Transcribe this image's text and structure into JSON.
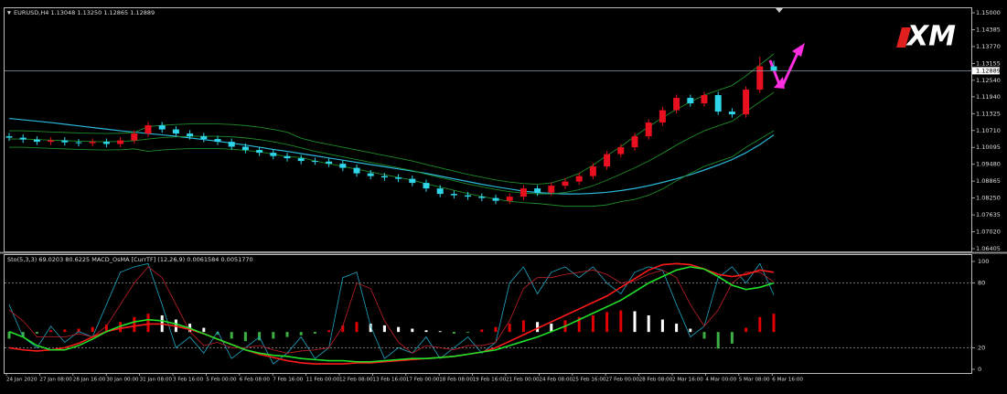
{
  "chart_data": [
    {
      "type": "candlestick",
      "title": "EURUSD,H4 1.13048 1.13250 1.12865 1.12889",
      "logo": "XM",
      "up_color": "#e8101e",
      "down_color": "#2fd6ea",
      "ylim": [
        1.06405,
        1.15
      ],
      "yticks": [
        {
          "value": 1.15,
          "label": "1.15000"
        },
        {
          "value": 1.14385,
          "label": "1.14385"
        },
        {
          "value": 1.1377,
          "label": "1.13770"
        },
        {
          "value": 1.13155,
          "label": "1.13155"
        },
        {
          "value": 1.1254,
          "label": "1.12540"
        },
        {
          "value": 1.1194,
          "label": "1.11940"
        },
        {
          "value": 1.11325,
          "label": "1.11325"
        },
        {
          "value": 1.1071,
          "label": "1.10710"
        },
        {
          "value": 1.10095,
          "label": "1.10095"
        },
        {
          "value": 1.0948,
          "label": "1.09480"
        },
        {
          "value": 1.08865,
          "label": "1.08865"
        },
        {
          "value": 1.0825,
          "label": "1.08250"
        },
        {
          "value": 1.07635,
          "label": "1.07635"
        },
        {
          "value": 1.0702,
          "label": "1.07020"
        },
        {
          "value": 1.06405,
          "label": "1.06405"
        }
      ],
      "price_line": {
        "value": 1.12889,
        "label": "1.12889"
      },
      "open": [
        1.105,
        1.1045,
        1.1038,
        1.103,
        1.1035,
        1.1028,
        1.1025,
        1.103,
        1.1022,
        1.1035,
        1.106,
        1.109,
        1.1075,
        1.106,
        1.105,
        1.104,
        1.103,
        1.1012,
        1.1,
        1.099,
        1.0978,
        1.097,
        1.096,
        1.0958,
        1.095,
        1.0935,
        1.0915,
        1.0905,
        1.09,
        1.0895,
        1.088,
        1.086,
        1.084,
        1.0835,
        1.083,
        1.0825,
        1.0815,
        1.083,
        1.086,
        1.0845,
        1.087,
        1.0885,
        1.0905,
        1.094,
        1.0985,
        1.101,
        1.105,
        1.11,
        1.1145,
        1.119,
        1.117,
        1.12,
        1.114,
        1.113,
        1.122,
        1.1305
      ],
      "high": [
        1.1062,
        1.1057,
        1.105,
        1.1047,
        1.1047,
        1.104,
        1.1042,
        1.1042,
        1.1047,
        1.1072,
        1.1102,
        1.1102,
        1.1087,
        1.1072,
        1.1062,
        1.1052,
        1.1042,
        1.1024,
        1.1012,
        1.1002,
        1.099,
        1.0982,
        1.0972,
        1.097,
        1.0962,
        1.0947,
        1.0927,
        1.0917,
        1.0912,
        1.0907,
        1.0892,
        1.0872,
        1.0852,
        1.0847,
        1.0842,
        1.0837,
        1.0842,
        1.0872,
        1.0872,
        1.0882,
        1.0897,
        1.0917,
        1.0952,
        1.0997,
        1.1022,
        1.1062,
        1.1112,
        1.1157,
        1.1202,
        1.1202,
        1.1212,
        1.1212,
        1.1152,
        1.1232,
        1.134,
        1.1325
      ],
      "low": [
        1.1033,
        1.1026,
        1.1018,
        1.1018,
        1.1016,
        1.1013,
        1.1013,
        1.101,
        1.101,
        1.1023,
        1.1048,
        1.1063,
        1.1048,
        1.1038,
        1.1028,
        1.1018,
        1.1,
        1.0988,
        1.0978,
        1.0966,
        1.0958,
        1.0948,
        1.0946,
        1.0938,
        1.0923,
        1.0903,
        1.0893,
        1.0888,
        1.0883,
        1.0868,
        1.0848,
        1.0828,
        1.0823,
        1.0818,
        1.0813,
        1.0803,
        1.0803,
        1.0818,
        1.0833,
        1.0833,
        1.0858,
        1.0873,
        1.0893,
        1.0928,
        1.0973,
        1.0998,
        1.1038,
        1.1088,
        1.1133,
        1.1158,
        1.1158,
        1.1128,
        1.1118,
        1.1118,
        1.1208,
        1.1287
      ],
      "close": [
        1.1045,
        1.1038,
        1.103,
        1.1035,
        1.1028,
        1.1025,
        1.103,
        1.1022,
        1.1035,
        1.106,
        1.109,
        1.1075,
        1.106,
        1.105,
        1.104,
        1.103,
        1.1012,
        1.1,
        1.099,
        1.0978,
        1.097,
        1.096,
        1.0958,
        1.095,
        1.0935,
        1.0915,
        1.0905,
        1.09,
        1.0895,
        1.088,
        1.086,
        1.084,
        1.0835,
        1.083,
        1.0825,
        1.0815,
        1.083,
        1.086,
        1.0845,
        1.087,
        1.0885,
        1.0905,
        1.094,
        1.0985,
        1.101,
        1.105,
        1.11,
        1.1145,
        1.119,
        1.117,
        1.12,
        1.114,
        1.113,
        1.122,
        1.1305,
        1.1289
      ],
      "series": [
        {
          "color": "#2bb7d8",
          "values": [
            1.1115,
            1.111,
            1.1105,
            1.11,
            1.1094,
            1.1088,
            1.1082,
            1.1076,
            1.107,
            1.1065,
            1.106,
            1.1055,
            1.105,
            1.1044,
            1.1038,
            1.1032,
            1.1025,
            1.1018,
            1.101,
            1.1002,
            1.0995,
            1.0987,
            1.0979,
            1.0971,
            1.0963,
            1.0955,
            1.0947,
            1.0939,
            1.0931,
            1.0923,
            1.0915,
            1.0905,
            1.0895,
            1.0885,
            1.0875,
            1.0866,
            1.0858,
            1.085,
            1.0845,
            1.0842,
            1.084,
            1.084,
            1.0842,
            1.0846,
            1.0852,
            1.086,
            1.087,
            1.0882,
            1.0895,
            1.091,
            1.0927,
            1.0945,
            1.0965,
            1.099,
            1.102,
            1.1055
          ]
        },
        {
          "color": "#1e8a28",
          "values": [
            1.104,
            1.104,
            1.1038,
            1.1036,
            1.1034,
            1.1032,
            1.1031,
            1.103,
            1.1031,
            1.1034,
            1.104,
            1.1045,
            1.1048,
            1.105,
            1.105,
            1.105,
            1.1048,
            1.1044,
            1.1038,
            1.103,
            1.102,
            1.1008,
            1.0995,
            1.0985,
            1.0975,
            1.0965,
            1.0955,
            1.0945,
            1.0935,
            1.0925,
            1.0912,
            1.09,
            1.0888,
            1.0876,
            1.0866,
            1.0856,
            1.0848,
            1.0843,
            1.084,
            1.084,
            1.0845,
            1.0855,
            1.087,
            1.089,
            1.0912,
            1.0935,
            1.096,
            1.0988,
            1.1018,
            1.1045,
            1.107,
            1.1088,
            1.1105,
            1.114,
            1.1175,
            1.121
          ]
        },
        {
          "color": "#1e8a28",
          "values": [
            1.107,
            1.107,
            1.1068,
            1.1066,
            1.1064,
            1.1062,
            1.1061,
            1.106,
            1.1061,
            1.1064,
            1.1085,
            1.109,
            1.1093,
            1.1095,
            1.1095,
            1.1095,
            1.1093,
            1.1089,
            1.1083,
            1.1075,
            1.1065,
            1.1043,
            1.103,
            1.102,
            1.101,
            1.1,
            1.099,
            1.098,
            1.097,
            1.096,
            1.0947,
            1.0935,
            1.0923,
            1.0911,
            1.0901,
            1.0891,
            1.0883,
            1.0878,
            1.0875,
            1.088,
            1.0895,
            1.0915,
            1.0945,
            1.098,
            1.1012,
            1.105,
            1.1085,
            1.1118,
            1.1148,
            1.1175,
            1.12,
            1.1218,
            1.1235,
            1.127,
            1.131,
            1.135
          ]
        },
        {
          "color": "#1e8a28",
          "values": [
            1.101,
            1.101,
            1.1008,
            1.1006,
            1.1004,
            1.1002,
            1.1001,
            1.1,
            1.1001,
            1.1004,
            1.0995,
            1.1,
            1.1003,
            1.1005,
            1.1005,
            1.1005,
            1.1003,
            1.0999,
            1.0993,
            1.0985,
            1.0975,
            1.0973,
            1.096,
            1.095,
            1.094,
            1.093,
            1.092,
            1.091,
            1.09,
            1.089,
            1.0877,
            1.0865,
            1.0853,
            1.0841,
            1.0831,
            1.0821,
            1.0813,
            1.0808,
            1.0805,
            1.08,
            1.0795,
            1.0795,
            1.0795,
            1.08,
            1.0812,
            1.082,
            1.0835,
            1.0858,
            1.0888,
            1.0915,
            1.094,
            1.0958,
            1.0975,
            1.101,
            1.104,
            1.107
          ]
        }
      ]
    },
    {
      "type": "line",
      "title": "Sto(5,3,3) 69.0203 80.6225  MACD_OsMA [CurrTF] (12,26,9) 0.0061584 0.0051770",
      "ylim": [
        0,
        100
      ],
      "yticks": [
        100,
        80,
        20,
        0
      ],
      "levels": [
        80,
        20
      ],
      "y2lim": [
        -0.0045,
        0.0085
      ],
      "xlabels": [
        "24 Jan 2020",
        "27 Jan 08:00",
        "28 Jan 16:00",
        "30 Jan 00:00",
        "31 Jan 08:00",
        "3 Feb 16:00",
        "5 Feb 00:00",
        "6 Feb 08:00",
        "7 Feb 16:00",
        "11 Feb 00:00",
        "12 Feb 08:00",
        "13 Feb 16:00",
        "17 Feb 00:00",
        "18 Feb 08:00",
        "19 Feb 16:00",
        "21 Feb 00:00",
        "24 Feb 08:00",
        "25 Feb 16:00",
        "27 Feb 00:00",
        "28 Feb 08:00",
        "2 Mar 16:00",
        "4 Mar 00:00",
        "5 Mar 08:00",
        "6 Mar 16:00"
      ],
      "series": [
        {
          "type": "bar",
          "axis": "y2",
          "up_color": "#e00000",
          "down_color": "#ffffff",
          "neg_color": "#3cb043",
          "values": [
            -0.0008,
            -0.0006,
            -0.0002,
            0.0002,
            0.0003,
            0.0004,
            0.0006,
            0.0009,
            0.0012,
            0.0018,
            0.0022,
            0.002,
            0.0015,
            0.001,
            0.0005,
            -0.0003,
            -0.0008,
            -0.0011,
            -0.001,
            -0.0008,
            -0.0006,
            -0.0004,
            -0.0002,
            0.0002,
            0.0008,
            0.0012,
            0.001,
            0.0008,
            0.0006,
            0.0004,
            0.0002,
            0.0001,
            -0.0002,
            -0.0001,
            0.0003,
            0.0006,
            0.001,
            0.0014,
            0.0012,
            0.001,
            0.0014,
            0.0018,
            0.002,
            0.0024,
            0.0026,
            0.0025,
            0.002,
            0.0015,
            0.001,
            0.0004,
            -0.0008,
            -0.002,
            -0.0014,
            0.0005,
            0.0018,
            0.0022
          ]
        },
        {
          "color": "#1fa6c4",
          "width": 0.8,
          "values": [
            60,
            30,
            20,
            40,
            25,
            35,
            30,
            60,
            90,
            95,
            98,
            60,
            20,
            30,
            15,
            35,
            10,
            20,
            30,
            5,
            15,
            30,
            10,
            20,
            85,
            90,
            40,
            10,
            20,
            15,
            30,
            10,
            20,
            30,
            15,
            25,
            80,
            95,
            70,
            90,
            95,
            85,
            95,
            80,
            70,
            90,
            95,
            92,
            60,
            30,
            40,
            85,
            95,
            80,
            98,
            69
          ]
        },
        {
          "color": "#c0202a",
          "width": 0.8,
          "values": [
            55,
            45,
            30,
            30,
            30,
            33,
            30,
            40,
            60,
            80,
            95,
            85,
            60,
            35,
            22,
            25,
            20,
            20,
            22,
            18,
            15,
            17,
            18,
            20,
            40,
            80,
            75,
            45,
            25,
            15,
            22,
            20,
            18,
            22,
            22,
            25,
            45,
            75,
            85,
            85,
            88,
            90,
            92,
            88,
            80,
            82,
            88,
            92,
            85,
            60,
            40,
            55,
            80,
            90,
            90,
            81
          ]
        },
        {
          "color": "#ff1a1a",
          "width": 1.6,
          "values": [
            20,
            18,
            17,
            18,
            20,
            24,
            30,
            35,
            38,
            40,
            42,
            42,
            40,
            37,
            33,
            28,
            23,
            18,
            14,
            11,
            8,
            6,
            5,
            5,
            5,
            6,
            6,
            7,
            8,
            9,
            10,
            11,
            12,
            14,
            16,
            20,
            26,
            32,
            38,
            44,
            50,
            56,
            62,
            68,
            76,
            84,
            92,
            97,
            98,
            97,
            93,
            88,
            86,
            88,
            92,
            90
          ]
        },
        {
          "color": "#22e02a",
          "width": 1.6,
          "values": [
            35,
            30,
            22,
            18,
            18,
            22,
            28,
            35,
            40,
            44,
            46,
            45,
            42,
            38,
            33,
            28,
            23,
            18,
            15,
            13,
            12,
            10,
            9,
            8,
            8,
            7,
            7,
            8,
            9,
            10,
            10,
            11,
            12,
            14,
            16,
            18,
            22,
            26,
            30,
            35,
            40,
            46,
            52,
            58,
            64,
            72,
            80,
            86,
            92,
            95,
            93,
            86,
            78,
            74,
            76,
            80
          ]
        }
      ]
    }
  ]
}
